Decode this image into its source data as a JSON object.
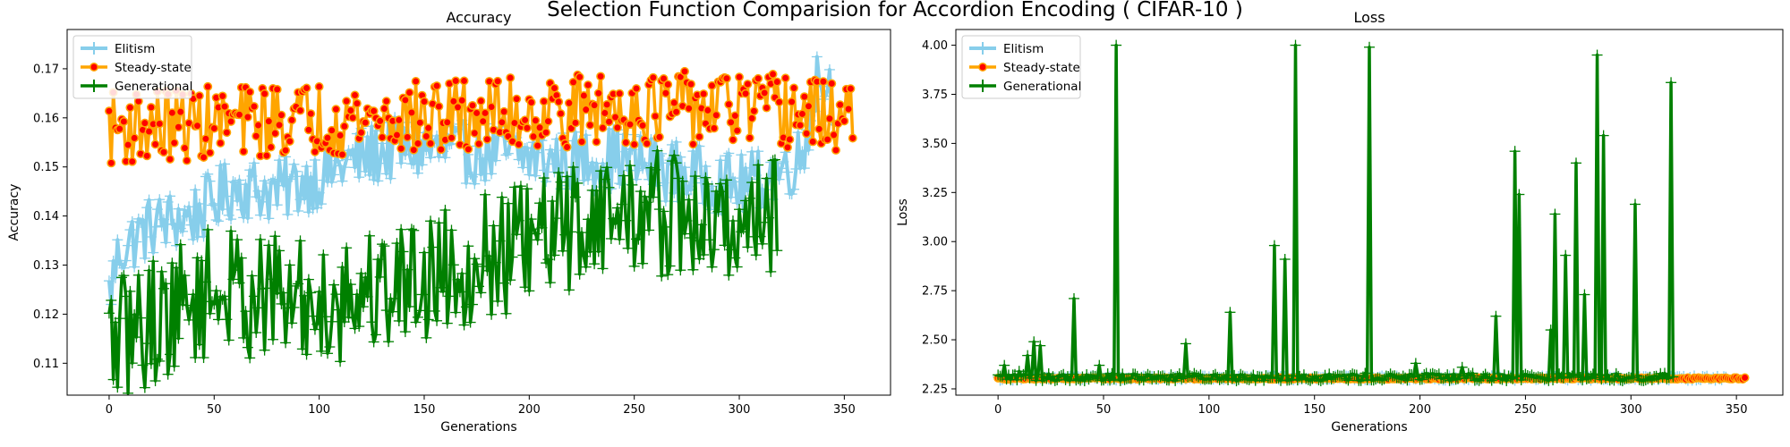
{
  "suptitle": "Selection Function Comparision for Accordion Encoding ( CIFAR-10 )",
  "colors": {
    "Elitism": "#87ceeb",
    "Steady-state": "#ffa500",
    "Generational": "#008000",
    "marker_face": "#ff0000"
  },
  "chart_data": [
    {
      "type": "line",
      "title": "Accuracy",
      "xlabel": "Generations",
      "ylabel": "Accuracy",
      "xlim": [
        -20,
        372
      ],
      "ylim": [
        0.1035,
        0.178
      ],
      "xticks": [
        0,
        50,
        100,
        150,
        200,
        250,
        300,
        350
      ],
      "yticks": [
        0.11,
        0.12,
        0.13,
        0.14,
        0.15,
        0.16,
        0.17
      ],
      "ytick_labels": [
        "0.11",
        "0.12",
        "0.13",
        "0.14",
        "0.15",
        "0.16",
        "0.17"
      ],
      "grid": false,
      "legend": "top-left",
      "series": [
        {
          "name": "Elitism",
          "marker": "errorbar",
          "x_start": 0,
          "x_end": 345,
          "keypoints": [
            [
              0,
              0.124
            ],
            [
              5,
              0.133
            ],
            [
              20,
              0.138
            ],
            [
              40,
              0.14
            ],
            [
              60,
              0.146
            ],
            [
              80,
              0.145
            ],
            [
              100,
              0.148
            ],
            [
              120,
              0.152
            ],
            [
              140,
              0.154
            ],
            [
              160,
              0.153
            ],
            [
              180,
              0.153
            ],
            [
              200,
              0.152
            ],
            [
              220,
              0.151
            ],
            [
              240,
              0.152
            ],
            [
              260,
              0.15
            ],
            [
              280,
              0.148
            ],
            [
              300,
              0.146
            ],
            [
              315,
              0.148
            ],
            [
              330,
              0.152
            ],
            [
              337,
              0.169
            ],
            [
              345,
              0.165
            ]
          ],
          "jitter": 0.0065
        },
        {
          "name": "Steady-state",
          "marker": "o",
          "x_start": 0,
          "x_end": 354,
          "keypoints": [
            [
              0,
              0.158
            ],
            [
              50,
              0.159
            ],
            [
              100,
              0.16
            ],
            [
              150,
              0.16
            ],
            [
              200,
              0.161
            ],
            [
              250,
              0.162
            ],
            [
              300,
              0.162
            ],
            [
              354,
              0.16
            ]
          ],
          "jitter": 0.0075
        },
        {
          "name": "Generational",
          "marker": "errorbar",
          "x_start": 0,
          "x_end": 318,
          "keypoints": [
            [
              0,
              0.114
            ],
            [
              50,
              0.125
            ],
            [
              100,
              0.122
            ],
            [
              150,
              0.128
            ],
            [
              200,
              0.134
            ],
            [
              230,
              0.14
            ],
            [
              260,
              0.141
            ],
            [
              290,
              0.137
            ],
            [
              318,
              0.142
            ]
          ],
          "jitter": 0.013
        }
      ]
    },
    {
      "type": "line",
      "title": "Loss",
      "xlabel": "Generations",
      "ylabel": "Loss",
      "xlim": [
        -20,
        372
      ],
      "ylim": [
        2.218,
        4.08
      ],
      "xticks": [
        0,
        50,
        100,
        150,
        200,
        250,
        300,
        350
      ],
      "yticks": [
        2.25,
        2.5,
        2.75,
        3.0,
        3.25,
        3.5,
        3.75,
        4.0
      ],
      "ytick_labels": [
        "2.25",
        "2.50",
        "2.75",
        "3.00",
        "3.25",
        "3.50",
        "3.75",
        "4.00"
      ],
      "grid": false,
      "legend": "top-left",
      "series": [
        {
          "name": "Elitism",
          "marker": "errorbar",
          "x_start": 0,
          "x_end": 345,
          "keypoints": [
            [
              0,
              2.305
            ],
            [
              345,
              2.305
            ]
          ],
          "jitter": 0.012
        },
        {
          "name": "Steady-state",
          "marker": "o",
          "x_start": 0,
          "x_end": 354,
          "keypoints": [
            [
              0,
              2.303
            ],
            [
              354,
              2.303
            ]
          ],
          "jitter": 0.004
        },
        {
          "name": "Generational",
          "marker": "errorbar",
          "x_start": 0,
          "x_end": 320,
          "keypoints": [
            [
              0,
              2.31
            ],
            [
              320,
              2.31
            ]
          ],
          "jitter": 0.02,
          "spikes": [
            [
              3,
              2.37
            ],
            [
              10,
              2.34
            ],
            [
              14,
              2.42
            ],
            [
              17,
              2.49
            ],
            [
              20,
              2.47
            ],
            [
              36,
              2.71
            ],
            [
              48,
              2.37
            ],
            [
              56,
              4.0
            ],
            [
              89,
              2.48
            ],
            [
              110,
              2.64
            ],
            [
              131,
              2.98
            ],
            [
              136,
              2.91
            ],
            [
              141,
              4.0
            ],
            [
              176,
              3.99
            ],
            [
              198,
              2.38
            ],
            [
              220,
              2.36
            ],
            [
              236,
              2.62
            ],
            [
              245,
              3.46
            ],
            [
              247,
              3.24
            ],
            [
              262,
              2.55
            ],
            [
              264,
              3.14
            ],
            [
              269,
              2.93
            ],
            [
              274,
              3.4
            ],
            [
              278,
              2.73
            ],
            [
              284,
              3.95
            ],
            [
              287,
              3.54
            ],
            [
              302,
              3.19
            ],
            [
              319,
              3.81
            ]
          ]
        }
      ]
    }
  ]
}
